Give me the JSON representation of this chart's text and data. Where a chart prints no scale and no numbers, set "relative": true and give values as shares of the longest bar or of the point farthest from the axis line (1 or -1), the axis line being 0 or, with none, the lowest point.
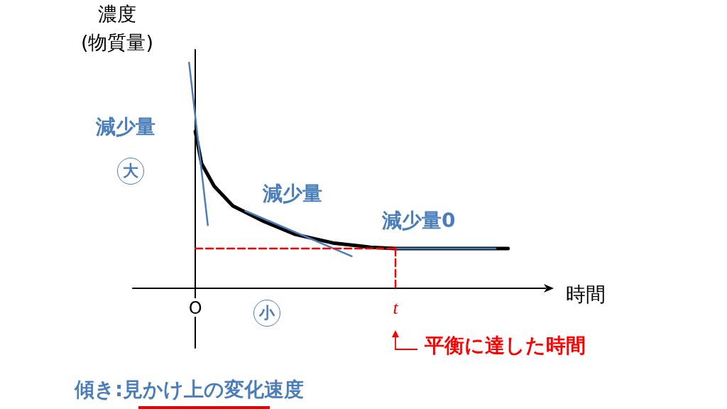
{
  "chart_data": {
    "type": "line",
    "relative": true,
    "ylabel": "濃度\n(物質量)",
    "xlabel": "時間",
    "categories": [
      null,
      null,
      null,
      null,
      null,
      null,
      null,
      null,
      null,
      null,
      "O",
      null,
      null,
      null,
      null,
      null,
      null,
      null,
      null,
      null,
      null,
      null,
      null,
      null,
      null,
      null,
      null,
      null,
      null,
      null,
      null,
      null,
      null,
      null,
      null,
      null,
      null,
      null,
      null,
      null,
      null,
      null,
      "t",
      null,
      null,
      null,
      null,
      null,
      null,
      null,
      null,
      null,
      null,
      null,
      null,
      null,
      null,
      null,
      null,
      null,
      null,
      null,
      null,
      null,
      null,
      null,
      null
    ],
    "grid": false,
    "marker": "none",
    "tick_labels": "x",
    "series": [
      {
        "color": "#000000",
        "values": [
          null,
          null,
          null,
          null,
          null,
          null,
          null,
          null,
          null,
          null,
          0.695,
          0.553,
          null,
          0.453,
          null,
          null,
          0.365,
          null,
          null,
          null,
          null,
          0.296,
          null,
          null,
          null,
          null,
          0.239,
          null,
          null,
          null,
          null,
          null,
          0.201,
          null,
          null,
          null,
          null,
          null,
          0.182,
          null,
          null,
          null,
          0.176,
          null,
          null,
          null,
          null,
          null,
          null,
          null,
          null,
          null,
          null,
          null,
          null,
          null,
          null,
          null,
          null,
          null,
          0.176,
          null,
          null,
          null,
          null,
          null,
          null
        ]
      },
      {
        "color": "#4a7ebb",
        "values": [
          null,
          null,
          null,
          null,
          null,
          null,
          null,
          null,
          null,
          1,
          null,
          null,
          0.28,
          null,
          null,
          null,
          null,
          null,
          null,
          null,
          null,
          null,
          null,
          null,
          null,
          null,
          null,
          null,
          null,
          null,
          null,
          null,
          null,
          null,
          null,
          null,
          null,
          null,
          null,
          null,
          null,
          null,
          null,
          null,
          null,
          null,
          null,
          null,
          null,
          null,
          null,
          null,
          null,
          null,
          null,
          null,
          null,
          null,
          null,
          null,
          null,
          null,
          null,
          null,
          null,
          null,
          null
        ]
      },
      {
        "color": "#4a7ebb",
        "values": [
          null,
          null,
          null,
          null,
          null,
          null,
          null,
          null,
          null,
          null,
          null,
          null,
          null,
          null,
          null,
          null,
          null,
          null,
          0.343,
          null,
          null,
          null,
          null,
          null,
          null,
          null,
          null,
          null,
          null,
          null,
          null,
          null,
          null,
          null,
          null,
          0.142,
          null,
          null,
          null,
          null,
          null,
          null,
          null,
          null,
          null,
          null,
          null,
          null,
          null,
          null,
          null,
          null,
          null,
          null,
          null,
          null,
          null,
          null,
          null,
          null,
          null,
          null,
          null,
          null,
          null,
          null,
          null
        ]
      },
      {
        "color": "#4a7ebb",
        "values": [
          null,
          null,
          null,
          null,
          null,
          null,
          null,
          null,
          null,
          null,
          null,
          null,
          null,
          null,
          null,
          null,
          null,
          null,
          null,
          null,
          null,
          null,
          null,
          null,
          null,
          null,
          null,
          null,
          null,
          null,
          null,
          null,
          null,
          null,
          null,
          null,
          null,
          null,
          null,
          null,
          null,
          null,
          0.176,
          null,
          null,
          null,
          null,
          null,
          null,
          null,
          null,
          null,
          null,
          null,
          null,
          null,
          null,
          null,
          0.176,
          null,
          null,
          null,
          null,
          null,
          null,
          null,
          null
        ]
      },
      {
        "color": "#ff0000",
        "line_style": "dashed",
        "values": [
          null,
          null,
          null,
          null,
          null,
          null,
          null,
          null,
          null,
          null,
          0.176,
          null,
          null,
          null,
          null,
          null,
          null,
          null,
          null,
          null,
          null,
          null,
          null,
          null,
          null,
          null,
          null,
          null,
          null,
          null,
          null,
          null,
          null,
          null,
          null,
          null,
          null,
          null,
          null,
          null,
          null,
          null,
          0.176,
          null,
          null,
          null,
          null,
          null,
          null,
          null,
          null,
          null,
          null,
          null,
          null,
          null,
          null,
          null,
          null,
          null,
          null,
          null,
          null,
          null,
          null,
          null,
          null
        ]
      },
      {
        "color": "#ff0000",
        "line_style": "dashed",
        "x": [
          "t",
          "t"
        ],
        "values": [
          0.176,
          0
        ]
      }
    ],
    "annotations": [
      "減少量",
      "大",
      "減少量",
      "減少量0",
      "小",
      "平衡に達した時間",
      "傾き:見かけ上の変化速度"
    ]
  }
}
